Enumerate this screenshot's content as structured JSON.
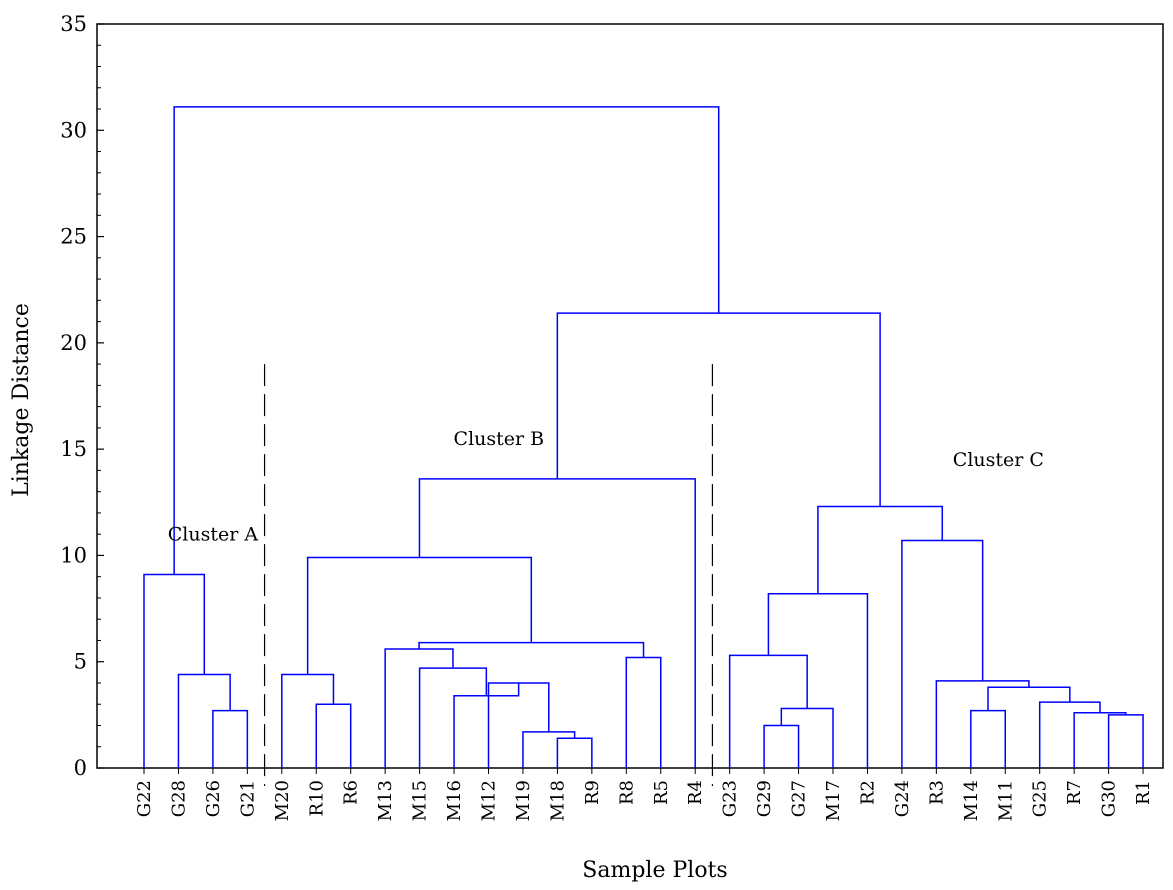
{
  "chart_data": {
    "type": "dendrogram",
    "title": "",
    "xlabel": "Sample Plots",
    "ylabel": "Linkage Distance",
    "ylim": [
      0,
      35
    ],
    "yticks": [
      0,
      5,
      10,
      15,
      20,
      25,
      30,
      35
    ],
    "line_color": "#0000ff",
    "leaves": [
      "G22",
      "G28",
      "G26",
      "G21",
      "M20",
      "R10",
      "R6",
      "M13",
      "M15",
      "M16",
      "M12",
      "M19",
      "M18",
      "R9",
      "R8",
      "R5",
      "R4",
      "G23",
      "G29",
      "G27",
      "M17",
      "R2",
      "G24",
      "R3",
      "M14",
      "M11",
      "G25",
      "R7",
      "G30",
      "R1"
    ],
    "merges": [
      {
        "a": "G26",
        "b": "G21",
        "height": 2.7
      },
      {
        "a": "G28",
        "b": 0,
        "height": 4.4
      },
      {
        "a": "G22",
        "b": 1,
        "height": 9.1
      },
      {
        "a": "R10",
        "b": "R6",
        "height": 3.0
      },
      {
        "a": "M20",
        "b": 3,
        "height": 4.4
      },
      {
        "a": "M18",
        "b": "R9",
        "height": 1.4
      },
      {
        "a": "M19",
        "b": 5,
        "height": 1.7
      },
      {
        "a": "M12",
        "b": 6,
        "height": 4.0
      },
      {
        "a": "M16",
        "b": 7,
        "height": 3.4
      },
      {
        "a": "M15",
        "b": 8,
        "height": 4.7
      },
      {
        "a": "M13",
        "b": 9,
        "height": 5.6
      },
      {
        "a": "R8",
        "b": "R5",
        "height": 5.2
      },
      {
        "a": 10,
        "b": 11,
        "height": 5.9
      },
      {
        "a": 4,
        "b": 12,
        "height": 9.9
      },
      {
        "a": 13,
        "b": "R4",
        "height": 13.6
      },
      {
        "a": "G29",
        "b": "G27",
        "height": 2.0
      },
      {
        "a": 15,
        "b": "M17",
        "height": 2.8
      },
      {
        "a": "G23",
        "b": 16,
        "height": 5.3
      },
      {
        "a": 17,
        "b": "R2",
        "height": 8.2
      },
      {
        "a": "G30",
        "b": "R1",
        "height": 2.5
      },
      {
        "a": "R7",
        "b": 19,
        "height": 2.6
      },
      {
        "a": "G25",
        "b": 20,
        "height": 3.1
      },
      {
        "a": "M14",
        "b": "M11",
        "height": 2.7
      },
      {
        "a": 22,
        "b": 21,
        "height": 3.8
      },
      {
        "a": "R3",
        "b": 23,
        "height": 4.1
      },
      {
        "a": "G24",
        "b": 24,
        "height": 10.7
      },
      {
        "a": 18,
        "b": 25,
        "height": 12.3
      },
      {
        "a": 14,
        "b": 26,
        "height": 21.4
      },
      {
        "a": 2,
        "b": 27,
        "height": 31.1
      }
    ],
    "annotations": [
      {
        "text": "Cluster A",
        "x": 2.0,
        "y": 10.7
      },
      {
        "text": "Cluster B",
        "x": 10.3,
        "y": 15.2
      },
      {
        "text": "Cluster C",
        "x": 24.8,
        "y": 14.2
      }
    ],
    "dividers": [
      {
        "after_leaf": "G21",
        "y_top": 19.0
      },
      {
        "after_leaf": "R4",
        "y_top": 19.0
      }
    ]
  }
}
